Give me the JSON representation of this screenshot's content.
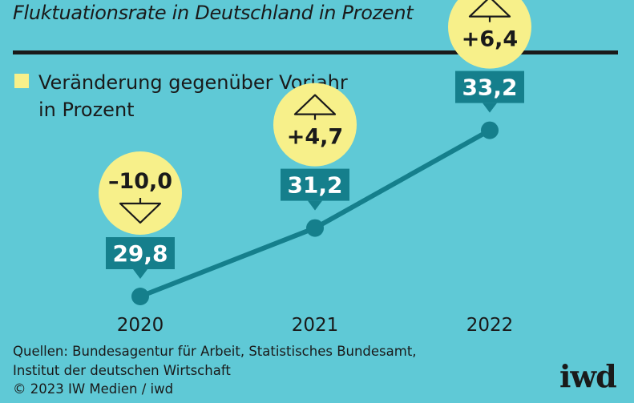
{
  "title": "Fluktuationsrate in Deutschland in Prozent",
  "legend": {
    "line1": "Veränderung gegenüber Vorjahr",
    "line2": "in Prozent"
  },
  "source": {
    "line1": "Quellen: Bundesagentur für Arbeit, Statistisches Bundesamt,",
    "line2": "Institut der deutschen Wirtschaft",
    "line3": "© 2023 IW Medien / iwd"
  },
  "logo": "iwd",
  "colors": {
    "background": "#5fc9d6",
    "line": "#157f8c",
    "label_box": "#157f8c",
    "bubble": "#f7f08a",
    "text_dark": "#1a1a1a"
  },
  "chart_data": {
    "type": "line",
    "title": "Fluktuationsrate in Deutschland in Prozent",
    "x": [
      "2020",
      "2021",
      "2022"
    ],
    "series": [
      {
        "values": [
          29.8,
          31.2,
          33.2
        ],
        "labels": [
          "29,8",
          "31,2",
          "33,2"
        ]
      }
    ],
    "changes": [
      {
        "value": -10.0,
        "label": "–10,0",
        "direction": "down"
      },
      {
        "value": 4.7,
        "label": "+4,7",
        "direction": "up"
      },
      {
        "value": 6.4,
        "label": "+6,4",
        "direction": "up"
      }
    ],
    "grid": false
  }
}
